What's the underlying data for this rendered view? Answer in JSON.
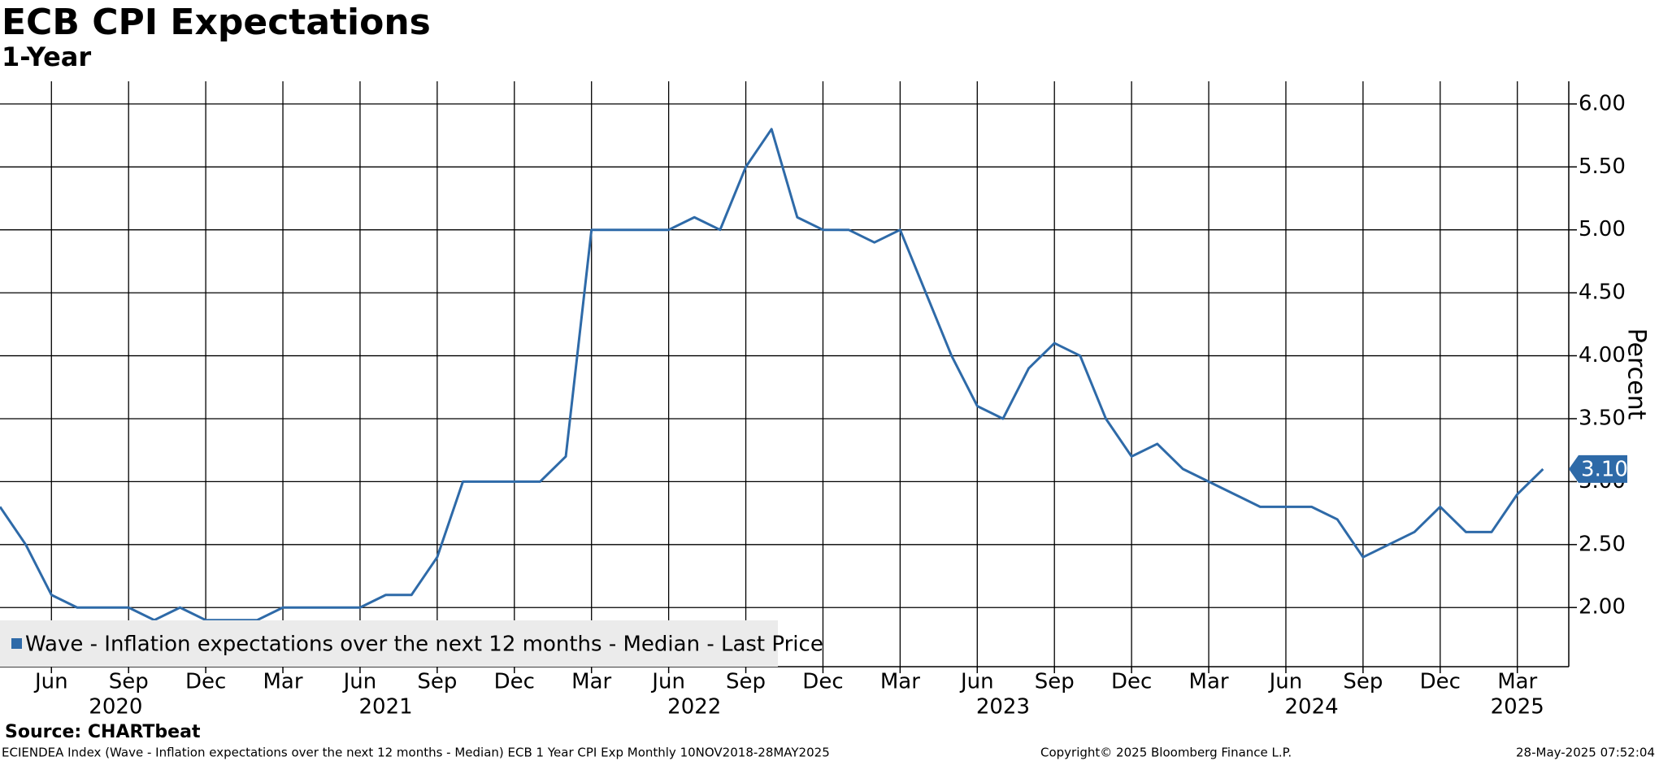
{
  "chart_data": {
    "type": "line",
    "title": "ECB CPI Expectations",
    "subtitle": "1-Year",
    "y_label": "Percent",
    "source": "Source: CHARTbeat",
    "footer_left": "ECIENDEA Index (Wave - Inflation expectations over the next 12 months - Median) ECB 1 Year CPI Exp  Monthly 10NOV2018-28MAY2025",
    "footer_center": "Copyright© 2025 Bloomberg Finance L.P.",
    "footer_right": "28-May-2025 07:52:04",
    "x": [
      "2020-04",
      "2020-05",
      "2020-06",
      "2020-07",
      "2020-08",
      "2020-09",
      "2020-10",
      "2020-11",
      "2020-12",
      "2021-01",
      "2021-02",
      "2021-03",
      "2021-04",
      "2021-05",
      "2021-06",
      "2021-07",
      "2021-08",
      "2021-09",
      "2021-10",
      "2021-11",
      "2021-12",
      "2022-01",
      "2022-02",
      "2022-03",
      "2022-04",
      "2022-05",
      "2022-06",
      "2022-07",
      "2022-08",
      "2022-09",
      "2022-10",
      "2022-11",
      "2022-12",
      "2023-01",
      "2023-02",
      "2023-03",
      "2023-04",
      "2023-05",
      "2023-06",
      "2023-07",
      "2023-08",
      "2023-09",
      "2023-10",
      "2023-11",
      "2023-12",
      "2024-01",
      "2024-02",
      "2024-03",
      "2024-04",
      "2024-05",
      "2024-06",
      "2024-07",
      "2024-08",
      "2024-09",
      "2024-10",
      "2024-11",
      "2024-12",
      "2025-01",
      "2025-02",
      "2025-03",
      "2025-04"
    ],
    "series": [
      {
        "name": "Wave - Inflation expectations over the next 12 months - Median - Last Price",
        "color": "#2e6aa8",
        "values": [
          2.8,
          2.5,
          2.1,
          2.0,
          2.0,
          2.0,
          1.9,
          2.0,
          1.9,
          1.9,
          1.9,
          2.0,
          2.0,
          2.0,
          2.0,
          2.1,
          2.1,
          2.4,
          3.0,
          3.0,
          3.0,
          3.0,
          3.2,
          5.0,
          5.0,
          5.0,
          5.0,
          5.1,
          5.0,
          5.5,
          5.8,
          5.1,
          5.0,
          5.0,
          4.9,
          5.0,
          4.5,
          4.0,
          3.6,
          3.5,
          3.9,
          4.1,
          4.0,
          3.5,
          3.2,
          3.3,
          3.1,
          3.0,
          2.9,
          2.8,
          2.8,
          2.8,
          2.7,
          2.4,
          2.5,
          2.6,
          2.8,
          2.6,
          2.6,
          2.9,
          3.1
        ],
        "value_labels": [
          null,
          null,
          null,
          null,
          null,
          null,
          null,
          null,
          null,
          null,
          null,
          null,
          null,
          null,
          null,
          null,
          null,
          null,
          null,
          null,
          null,
          null,
          null,
          null,
          null,
          null,
          null,
          null,
          null,
          null,
          null,
          null,
          null,
          null,
          null,
          null,
          null,
          null,
          null,
          null,
          null,
          null,
          null,
          null,
          null,
          null,
          null,
          null,
          null,
          null,
          null,
          null,
          null,
          null,
          null,
          null,
          null,
          null,
          null,
          null,
          "3.10"
        ]
      }
    ],
    "xlim": [
      "2020-04",
      "2025-05"
    ],
    "xticks": [
      {
        "value": "2020-06",
        "label": "Jun"
      },
      {
        "value": "2020-09",
        "label": "Sep"
      },
      {
        "value": "2020-12",
        "label": "Dec"
      },
      {
        "value": "2021-03",
        "label": "Mar"
      },
      {
        "value": "2021-06",
        "label": "Jun"
      },
      {
        "value": "2021-09",
        "label": "Sep"
      },
      {
        "value": "2021-12",
        "label": "Dec"
      },
      {
        "value": "2022-03",
        "label": "Mar"
      },
      {
        "value": "2022-06",
        "label": "Jun"
      },
      {
        "value": "2022-09",
        "label": "Sep"
      },
      {
        "value": "2022-12",
        "label": "Dec"
      },
      {
        "value": "2023-03",
        "label": "Mar"
      },
      {
        "value": "2023-06",
        "label": "Jun"
      },
      {
        "value": "2023-09",
        "label": "Sep"
      },
      {
        "value": "2023-12",
        "label": "Dec"
      },
      {
        "value": "2024-03",
        "label": "Mar"
      },
      {
        "value": "2024-06",
        "label": "Jun"
      },
      {
        "value": "2024-09",
        "label": "Sep"
      },
      {
        "value": "2024-12",
        "label": "Dec"
      },
      {
        "value": "2025-03",
        "label": "Mar"
      }
    ],
    "x_years": [
      2020,
      2021,
      2022,
      2023,
      2024,
      2025
    ],
    "ylim": [
      1.53,
      6.18
    ],
    "yticks": [
      {
        "value": 2,
        "label": "2.00"
      },
      {
        "value": 2.5,
        "label": "2.50"
      },
      {
        "value": 3,
        "label": "3.00"
      },
      {
        "value": 3.5,
        "label": "3.50"
      },
      {
        "value": 4,
        "label": "4.00"
      },
      {
        "value": 4.5,
        "label": "4.50"
      },
      {
        "value": 5,
        "label": "5.00"
      },
      {
        "value": 5.5,
        "label": "5.50"
      },
      {
        "value": 6,
        "label": "6.00"
      }
    ],
    "grid": true,
    "legend": "bottom-left"
  }
}
